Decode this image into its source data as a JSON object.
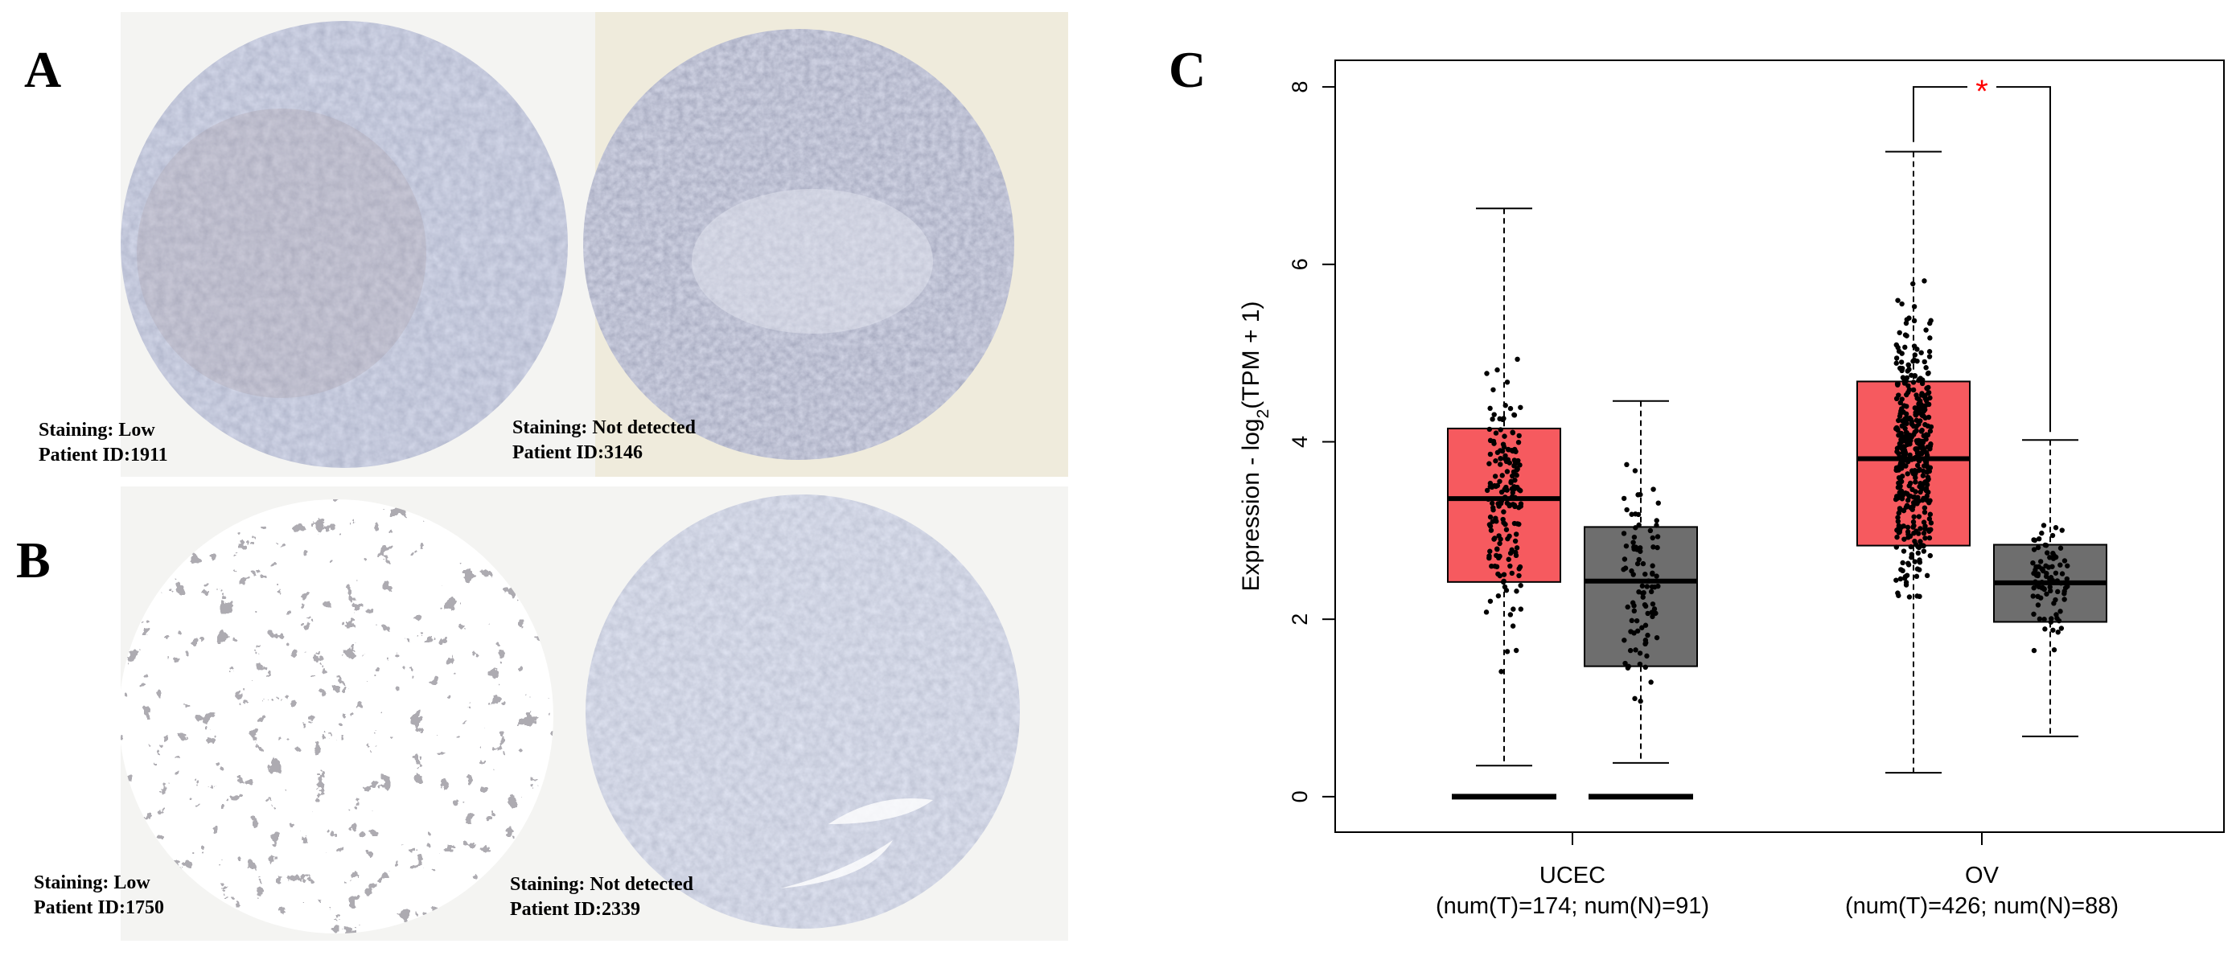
{
  "panels": {
    "a": {
      "letter": "A",
      "left": {
        "staining": "Staining: Low",
        "patient": "Patient ID:1911"
      },
      "right": {
        "staining": "Staining: Not detected",
        "patient": "Patient ID:3146"
      }
    },
    "b": {
      "letter": "B",
      "left": {
        "staining": "Staining: Low",
        "patient": "Patient ID:1750"
      },
      "right": {
        "staining": "Staining: Not detected",
        "patient": "Patient ID:2339"
      }
    },
    "c": {
      "letter": "C"
    }
  },
  "colors": {
    "tumor": "#f65a5f",
    "normal": "#6e6e6e",
    "significance": "#ff0000",
    "tissue_stain": "#8f98b4",
    "tissue_brown": "#9a8a86"
  },
  "chart_data": {
    "type": "box",
    "ylabel": "Expression - log2(TPM + 1)",
    "ylim": [
      -0.4,
      8.3
    ],
    "yticks": [
      0,
      2,
      4,
      6,
      8
    ],
    "categories": [
      {
        "name": "UCEC",
        "counts": "(num(T)=174; num(N)=91)"
      },
      {
        "name": "OV",
        "counts": "(num(T)=426; num(N)=88)"
      }
    ],
    "groups": [
      {
        "category": "UCEC",
        "group": "T",
        "n": 174,
        "whisker_low": 0.35,
        "q1": 2.42,
        "median": 3.36,
        "q3": 4.15,
        "whisker_high": 6.63,
        "zeros": true
      },
      {
        "category": "UCEC",
        "group": "N",
        "n": 91,
        "whisker_low": 0.38,
        "q1": 1.47,
        "median": 2.43,
        "q3": 3.04,
        "whisker_high": 4.46,
        "zeros": true
      },
      {
        "category": "OV",
        "group": "T",
        "n": 426,
        "whisker_low": 0.27,
        "q1": 2.83,
        "median": 3.81,
        "q3": 4.68,
        "whisker_high": 7.27,
        "zeros": false
      },
      {
        "category": "OV",
        "group": "N",
        "n": 88,
        "whisker_low": 0.68,
        "q1": 1.97,
        "median": 2.41,
        "q3": 2.84,
        "whisker_high": 4.02,
        "zeros": false
      }
    ],
    "significance": {
      "category": "OV",
      "label": "*",
      "y": 8.0
    }
  }
}
